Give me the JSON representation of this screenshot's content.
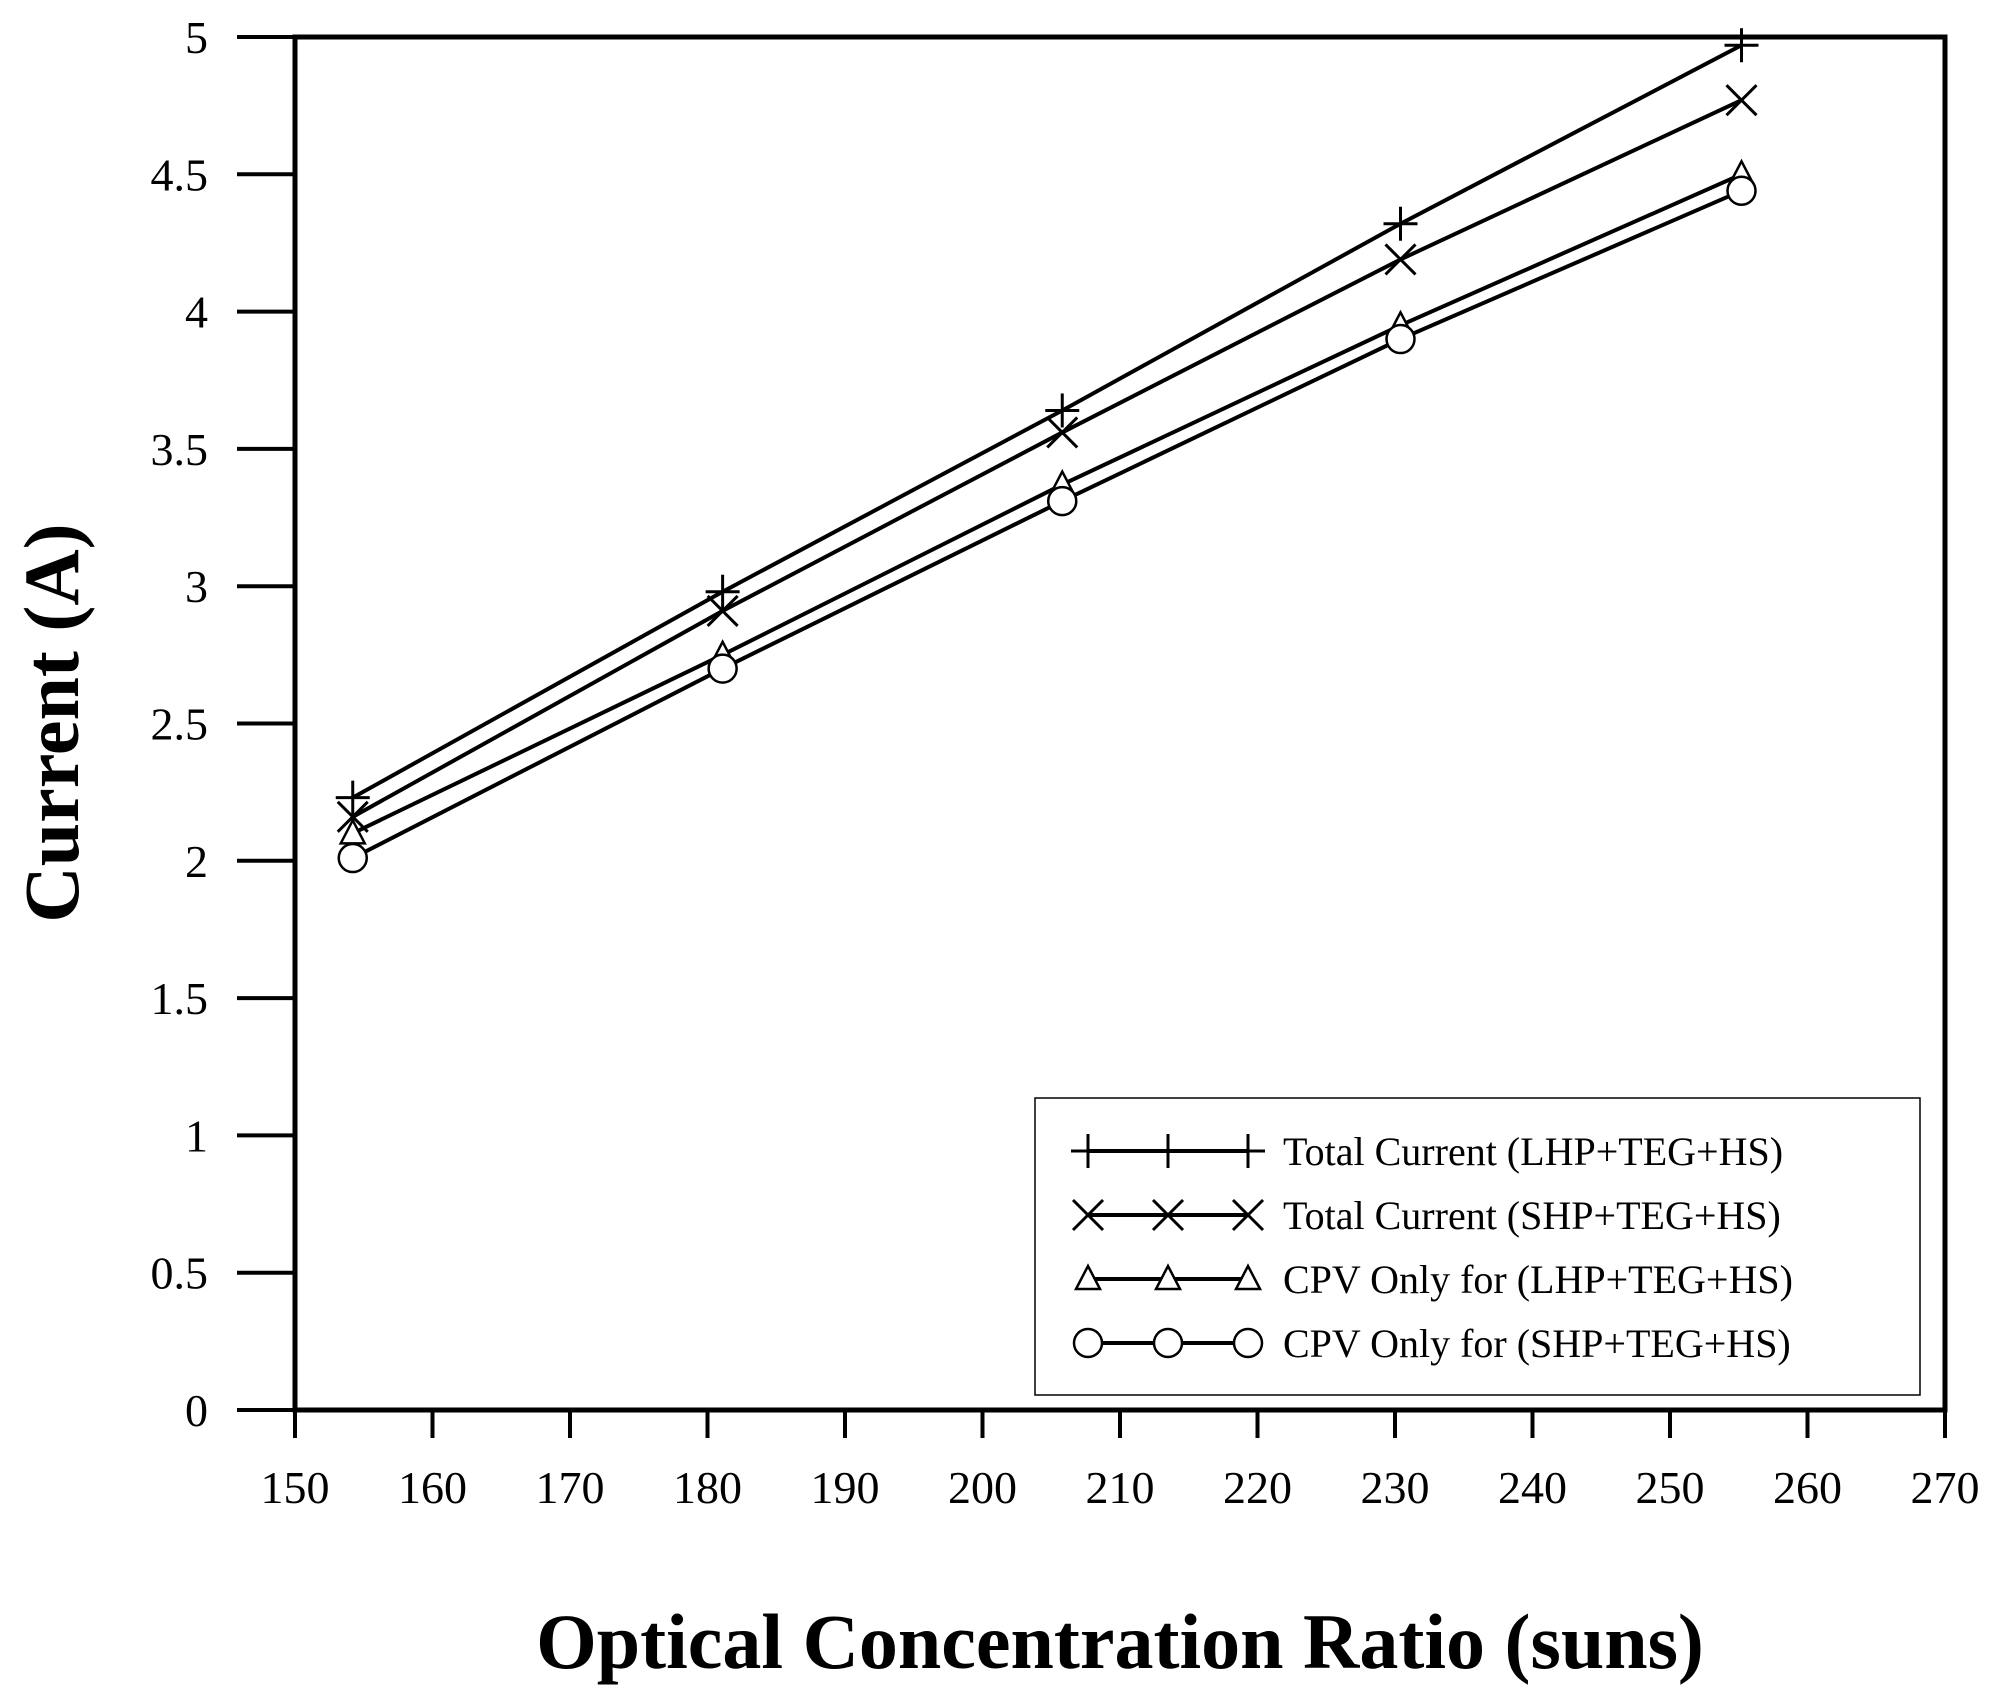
{
  "chart_data": {
    "type": "line",
    "title": "",
    "xlabel": "Optical Concentration Ratio (suns)",
    "ylabel": "Current (A)",
    "xlim": [
      150,
      270
    ],
    "ylim": [
      0,
      5
    ],
    "x_ticks": [
      150,
      160,
      170,
      180,
      190,
      200,
      210,
      220,
      230,
      240,
      250,
      260,
      270
    ],
    "y_ticks": [
      0,
      0.5,
      1,
      1.5,
      2,
      2.5,
      3,
      3.5,
      4,
      4.5,
      5
    ],
    "x_tick_labels": [
      "150",
      "160",
      "170",
      "180",
      "190",
      "200",
      "210",
      "220",
      "230",
      "240",
      "250",
      "260",
      "270"
    ],
    "y_tick_labels": [
      "0",
      "0.5",
      "1",
      "1.5",
      "2",
      "2.5",
      "3",
      "3.5",
      "4",
      "4.5",
      "5"
    ],
    "x": [
      154.2,
      181.1,
      205.8,
      230.4,
      255.2
    ],
    "grid": false,
    "legend_position": "bottom-right",
    "series": [
      {
        "name": "Total Current (LHP+TEG+HS)",
        "marker": "plus",
        "values": [
          2.23,
          2.98,
          3.64,
          4.32,
          4.97
        ]
      },
      {
        "name": "Total Current (SHP+TEG+HS)",
        "marker": "x",
        "values": [
          2.16,
          2.91,
          3.56,
          4.19,
          4.77
        ]
      },
      {
        "name": "CPV Only for (LHP+TEG+HS)",
        "marker": "triangle",
        "values": [
          2.1,
          2.75,
          3.37,
          3.95,
          4.5
        ]
      },
      {
        "name": "CPV Only for (SHP+TEG+HS)",
        "marker": "circle",
        "values": [
          2.01,
          2.7,
          3.31,
          3.9,
          4.44
        ]
      }
    ]
  }
}
